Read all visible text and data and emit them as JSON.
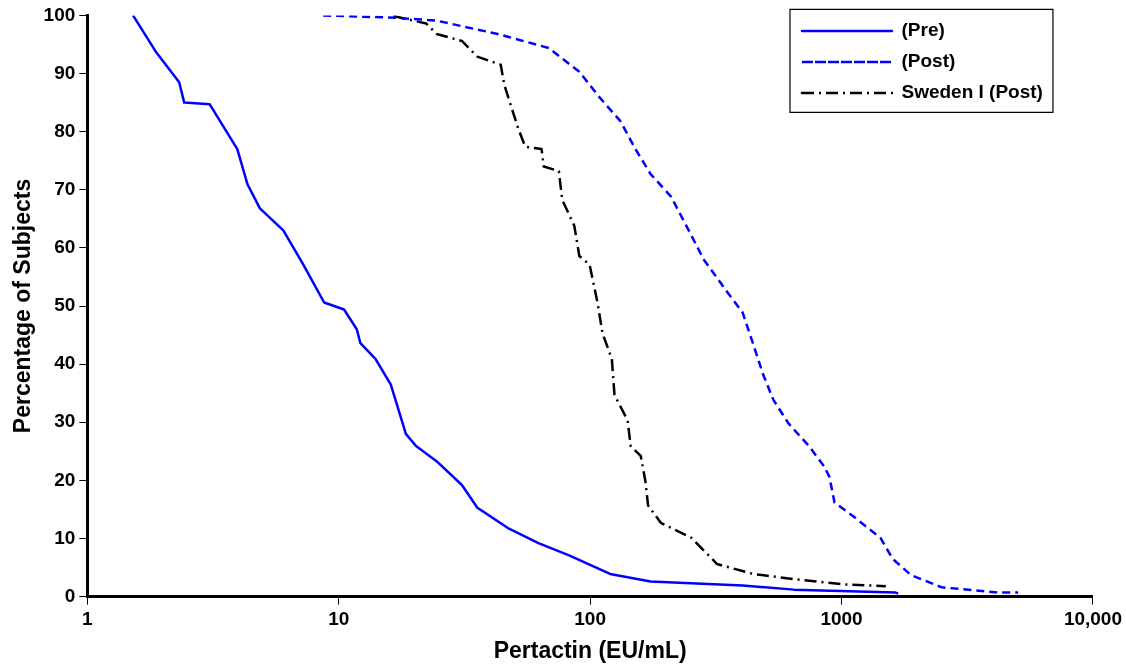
{
  "chart_data": {
    "type": "line",
    "xlabel": "Pertactin (EU/mL)",
    "ylabel": "Percentage of Subjects",
    "log": "x",
    "xlim": [
      1,
      10000
    ],
    "xticks": [
      1,
      10,
      100,
      1000,
      {
        "value": 10000,
        "label": "10,000"
      }
    ],
    "ylim": [
      0,
      100
    ],
    "yticks": [
      0,
      10,
      20,
      30,
      40,
      50,
      60,
      70,
      80,
      90,
      100
    ],
    "grid": false,
    "legend": "top right",
    "marker": "none",
    "series": [
      {
        "name": "(Pre)",
        "color": "#0000ff",
        "line_style": "solid",
        "x": [
          1.52,
          1.87,
          2.32,
          2.43,
          3.07,
          3.95,
          4.34,
          4.86,
          6.02,
          7.26,
          8.75,
          10.5,
          11.8,
          12.2,
          14,
          16.1,
          18.5,
          20.3,
          24.5,
          30.9,
          35.6,
          47.1,
          62.3,
          82.5,
          120,
          174,
          404,
          646,
          1640,
          1680
        ],
        "values": [
          100,
          93.8,
          88.5,
          85,
          84.7,
          77,
          70.9,
          66.8,
          63,
          57,
          50.6,
          49.4,
          46,
          43.6,
          40.9,
          36.5,
          28,
          25.9,
          23.3,
          19.2,
          15.3,
          11.8,
          9.2,
          7.1,
          3.9,
          2.6,
          1.9,
          1.2,
          0.7,
          0.5
        ]
      },
      {
        "name": "(Post)",
        "color": "#0000ff",
        "line_style": "dashed",
        "x": [
          8.67,
          16.8,
          24.5,
          42.9,
          68.4,
          90.6,
          109,
          132,
          151,
          174,
          210,
          253,
          283,
          351,
          404,
          444,
          487,
          535,
          615,
          742,
          853,
          895,
          938,
          1130,
          1428,
          1597,
          1890,
          2500,
          4190,
          5040
        ],
        "values": [
          100,
          99.6,
          99.1,
          96.8,
          94.4,
          90.3,
          85.9,
          81.8,
          77.1,
          72.7,
          68.8,
          62.1,
          58,
          52.4,
          48.9,
          43.6,
          38.3,
          33.9,
          29.8,
          25.9,
          22.4,
          20.6,
          16.2,
          13.6,
          10.1,
          6.5,
          3.7,
          1.6,
          0.7,
          0.7
        ]
      },
      {
        "name": "Sweden I (Post)",
        "color": "#000000",
        "line_style": "dashdot",
        "x": [
          16.5,
          22.3,
          24.5,
          30.9,
          35.6,
          44.1,
          45.6,
          51.7,
          55.2,
          64.1,
          65.4,
          75.1,
          77.4,
          86.5,
          90.6,
          99.5,
          107,
          112,
          122,
          125,
          141,
          145,
          159,
          166,
          170,
          191,
          253,
          320,
          444,
          646,
          1030,
          1500
        ],
        "values": [
          99.9,
          98.6,
          96.8,
          95.6,
          92.9,
          91.5,
          88,
          80.6,
          77.4,
          77,
          74,
          73.2,
          68.3,
          63.8,
          58.6,
          57.1,
          50.6,
          45.3,
          40.9,
          34.7,
          30.3,
          25.9,
          24.2,
          19.8,
          15.7,
          12.7,
          10.1,
          5.6,
          3.9,
          3,
          2.1,
          1.8
        ]
      }
    ]
  }
}
